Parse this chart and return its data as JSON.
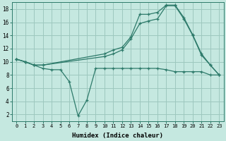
{
  "xlabel": "Humidex (Indice chaleur)",
  "background_color": "#c5e8e0",
  "grid_color": "#9dc8be",
  "line_color": "#2d7a6a",
  "xlim": [
    -0.5,
    23.5
  ],
  "ylim": [
    1.0,
    19.0
  ],
  "xticks": [
    0,
    1,
    2,
    3,
    4,
    5,
    6,
    7,
    8,
    9,
    10,
    11,
    12,
    13,
    14,
    15,
    16,
    17,
    18,
    19,
    20,
    21,
    22,
    23
  ],
  "yticks": [
    2,
    4,
    6,
    8,
    10,
    12,
    14,
    16,
    18
  ],
  "line1_x": [
    0,
    1,
    2,
    3,
    4,
    5,
    6,
    7,
    8,
    9,
    10,
    11,
    12,
    13,
    14,
    15,
    16,
    17,
    18,
    19,
    20,
    21,
    22,
    23
  ],
  "line1_y": [
    10.4,
    10.0,
    9.5,
    9.0,
    8.8,
    8.8,
    7.0,
    1.8,
    4.2,
    9.0,
    9.0,
    9.0,
    9.0,
    9.0,
    9.0,
    9.0,
    9.0,
    8.8,
    8.5,
    8.5,
    8.5,
    8.5,
    8.0,
    8.0
  ],
  "line2_x": [
    0,
    1,
    2,
    3,
    10,
    11,
    12,
    13,
    14,
    15,
    16,
    17,
    18,
    19,
    20,
    21,
    22,
    23
  ],
  "line2_y": [
    10.4,
    10.0,
    9.5,
    9.5,
    11.2,
    11.8,
    12.2,
    13.8,
    17.2,
    17.2,
    17.5,
    18.6,
    18.6,
    16.7,
    14.1,
    11.2,
    9.5,
    8.0
  ],
  "line3_x": [
    0,
    1,
    2,
    3,
    10,
    11,
    12,
    13,
    14,
    15,
    16,
    17,
    18,
    19,
    20,
    21,
    22,
    23
  ],
  "line3_y": [
    10.4,
    10.0,
    9.5,
    9.5,
    10.8,
    11.2,
    11.8,
    13.5,
    15.8,
    16.2,
    16.5,
    18.5,
    18.5,
    16.5,
    14.0,
    11.0,
    9.5,
    8.0
  ]
}
